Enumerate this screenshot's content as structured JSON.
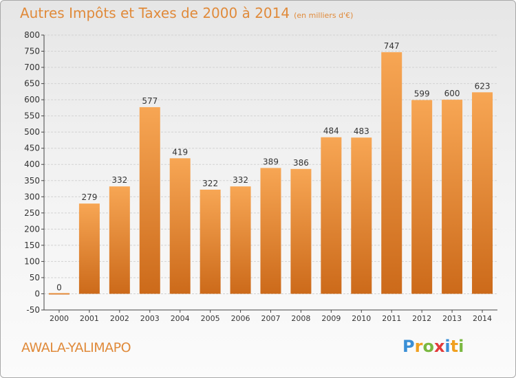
{
  "title": "Autres Impôts et Taxes de 2000 à 2014",
  "subtitle": "(en milliers d'€)",
  "place": "AWALA-YALIMAPO",
  "logo": {
    "letters": [
      "P",
      "r",
      "o",
      "x",
      "i",
      "t",
      "i"
    ],
    "colors": [
      "#3a8fd6",
      "#f0a020",
      "#7ab840",
      "#e23a3a",
      "#3a8fd6",
      "#f0a020",
      "#7ab840"
    ]
  },
  "colors": {
    "bar_light": "#f7a654",
    "bar_dark": "#cc6a1a",
    "title": "#e08a3a",
    "grid": "#d2d2d2"
  },
  "chart_data": {
    "type": "bar",
    "categories": [
      "2000",
      "2001",
      "2002",
      "2003",
      "2004",
      "2005",
      "2006",
      "2007",
      "2008",
      "2009",
      "2010",
      "2011",
      "2012",
      "2013",
      "2014"
    ],
    "values": [
      0,
      279,
      332,
      577,
      419,
      322,
      332,
      389,
      386,
      484,
      483,
      747,
      599,
      600,
      623
    ],
    "yticks": [
      -50,
      0,
      50,
      100,
      150,
      200,
      250,
      300,
      350,
      400,
      450,
      500,
      550,
      600,
      650,
      700,
      750,
      800
    ],
    "ylim": [
      -50,
      800
    ],
    "grid": true,
    "data_labels": true
  }
}
